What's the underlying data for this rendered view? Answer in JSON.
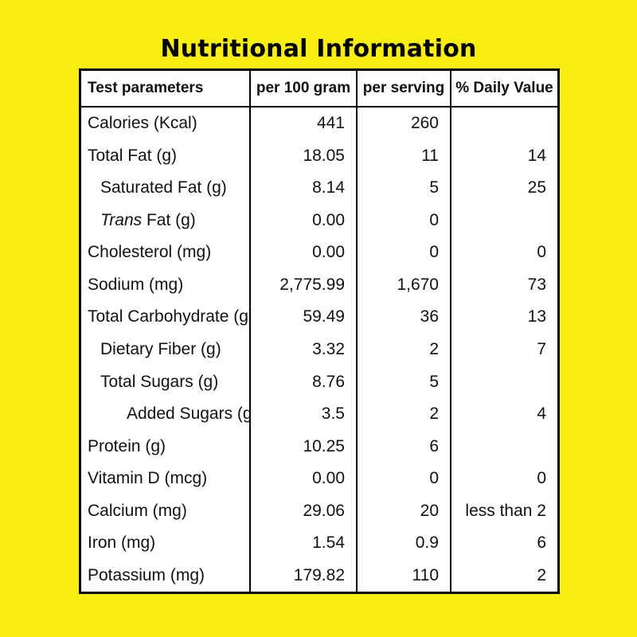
{
  "title": "Nutritional Information",
  "table": {
    "headers": [
      "Test parameters",
      "per 100 gram",
      "per serving",
      "% Daily Value"
    ],
    "rows": [
      {
        "label": "Calories (Kcal)",
        "indent": 0,
        "per100": "441",
        "serving": "260",
        "dv": ""
      },
      {
        "label": "Total Fat (g)",
        "indent": 0,
        "per100": "18.05",
        "serving": "11",
        "dv": "14"
      },
      {
        "label": "Saturated Fat (g)",
        "indent": 1,
        "per100": "8.14",
        "serving": "5",
        "dv": "25"
      },
      {
        "label_italic": "Trans",
        "label_rest": " Fat (g)",
        "indent": 1,
        "per100": "0.00",
        "serving": "0",
        "dv": ""
      },
      {
        "label": "Cholesterol (mg)",
        "indent": 0,
        "per100": "0.00",
        "serving": "0",
        "dv": "0"
      },
      {
        "label": "Sodium (mg)",
        "indent": 0,
        "per100": "2,775.99",
        "serving": "1,670",
        "dv": "73"
      },
      {
        "label": "Total Carbohydrate (g)",
        "indent": 0,
        "per100": "59.49",
        "serving": "36",
        "dv": "13"
      },
      {
        "label": "Dietary Fiber (g)",
        "indent": 1,
        "per100": "3.32",
        "serving": "2",
        "dv": "7"
      },
      {
        "label": "Total Sugars (g)",
        "indent": 1,
        "per100": "8.76",
        "serving": "5",
        "dv": ""
      },
      {
        "label": "Added Sugars (g)",
        "indent": 2,
        "per100": "3.5",
        "serving": "2",
        "dv": "4"
      },
      {
        "label": "Protein (g)",
        "indent": 0,
        "per100": "10.25",
        "serving": "6",
        "dv": ""
      },
      {
        "label": "Vitamin D (mcg)",
        "indent": 0,
        "per100": "0.00",
        "serving": "0",
        "dv": "0"
      },
      {
        "label": "Calcium (mg)",
        "indent": 0,
        "per100": "29.06",
        "serving": "20",
        "dv": "less than 2"
      },
      {
        "label": "Iron (mg)",
        "indent": 0,
        "per100": "1.54",
        "serving": "0.9",
        "dv": "6"
      },
      {
        "label": "Potassium (mg)",
        "indent": 0,
        "per100": "179.82",
        "serving": "110",
        "dv": "2"
      }
    ]
  },
  "colors": {
    "background": "#f9ee12",
    "table_background": "#ffffff",
    "border": "#000000"
  }
}
